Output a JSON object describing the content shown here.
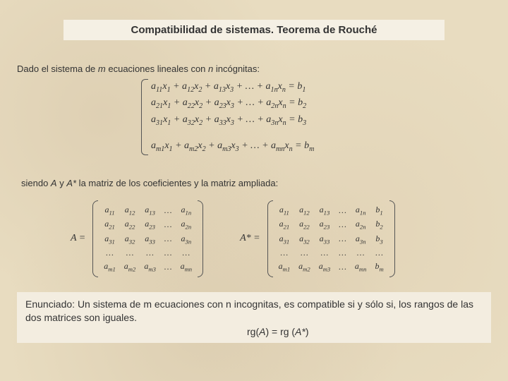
{
  "title": "Compatibilidad de sistemas. Teorema de Rouché",
  "intro": {
    "pre": "Dado el sistema de ",
    "m": "m",
    "mid": " ecuaciones lineales con ",
    "n": "n",
    "post": " incógnitas:"
  },
  "mid": {
    "pre": "siendo ",
    "A": "A",
    "mid1": " y ",
    "Astar": "A*",
    "post": " la matriz de los coeficientes y la matriz ampliada:"
  },
  "matLabelA": "A =",
  "matLabelAstar": "A* =",
  "statement": {
    "text": "Enunciado: Un sistema de m ecuaciones con n incognitas, es compatible si y sólo si, los rangos de las dos matrices son iguales."
  },
  "rank": {
    "lhs": "rg(",
    "A": "A",
    "mid": ") = rg (",
    "Astar": "A*",
    "end": ")"
  },
  "colors": {
    "bg": "#e8dcc0",
    "box": "#f5f0e4",
    "title_fontsize": 15,
    "body_fontsize": 13
  }
}
